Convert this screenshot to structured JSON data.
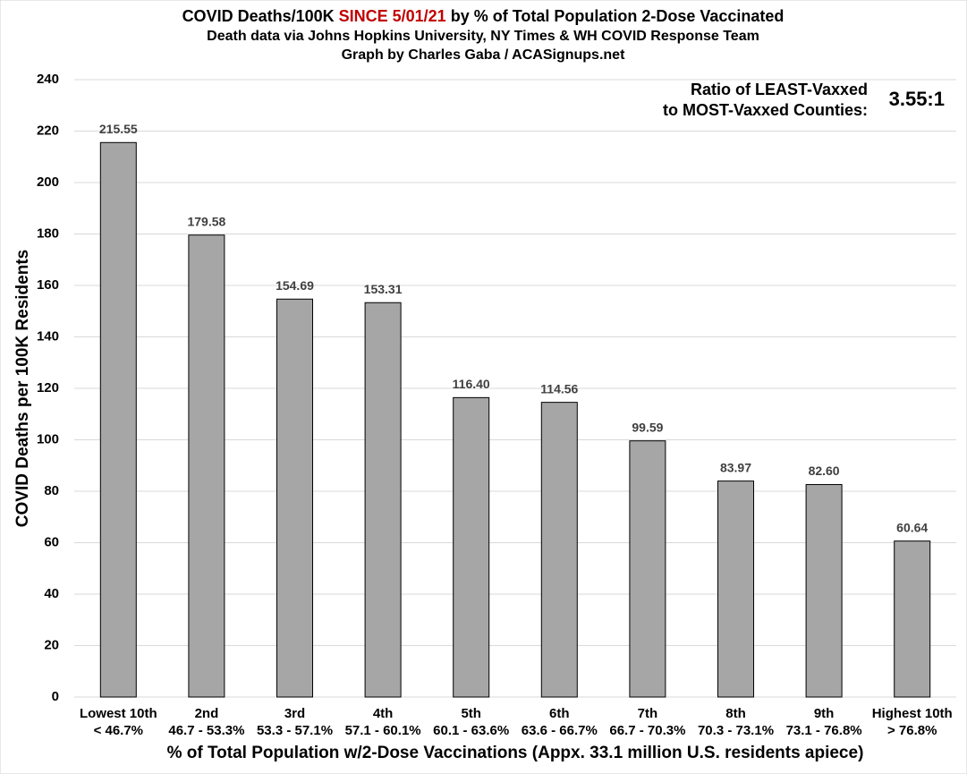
{
  "chart_data": {
    "type": "bar",
    "title": [
      {
        "text": "COVID Deaths/100K ",
        "color": "#000000"
      },
      {
        "text": "SINCE 5/01/21",
        "color": "#c00000"
      },
      {
        "text": " by % of Total Population 2-Dose Vaccinated",
        "color": "#000000"
      }
    ],
    "subtitle": [
      "Death data via Johns Hopkins University, NY Times & WH COVID Response Team",
      "Graph by Charles Gaba / ACASignups.net"
    ],
    "annotation": [
      "Ratio of LEAST-Vaxxed",
      "to MOST-Vaxxed Counties:"
    ],
    "ratio": "3.55:1",
    "xlabel": "% of Total Population w/2-Dose Vaccinations (Appx. 33.1 million U.S. residents apiece)",
    "ylabel": "COVID Deaths per 100K Residents",
    "categories": [
      [
        "Lowest 10th",
        "< 46.7%"
      ],
      [
        "2nd",
        "46.7 - 53.3%"
      ],
      [
        "3rd",
        "53.3 - 57.1%"
      ],
      [
        "4th",
        "57.1 - 60.1%"
      ],
      [
        "5th",
        "60.1 - 63.6%"
      ],
      [
        "6th",
        "63.6 - 66.7%"
      ],
      [
        "7th",
        "66.7 - 70.3%"
      ],
      [
        "8th",
        "70.3 - 73.1%"
      ],
      [
        "9th",
        "73.1 - 76.8%"
      ],
      [
        "Highest 10th",
        "> 76.8%"
      ]
    ],
    "values": [
      215.55,
      179.58,
      154.69,
      153.31,
      116.4,
      114.56,
      99.59,
      83.97,
      82.6,
      60.64
    ],
    "value_labels": [
      "215.55",
      "179.58",
      "154.69",
      "153.31",
      "116.40",
      "114.56",
      "99.59",
      "83.97",
      "82.60",
      "60.64"
    ],
    "color": "#a6a6a6",
    "ylim": [
      0,
      240
    ],
    "yticks": [
      0,
      20,
      40,
      60,
      80,
      100,
      120,
      140,
      160,
      180,
      200,
      220,
      240
    ],
    "grid": true
  }
}
